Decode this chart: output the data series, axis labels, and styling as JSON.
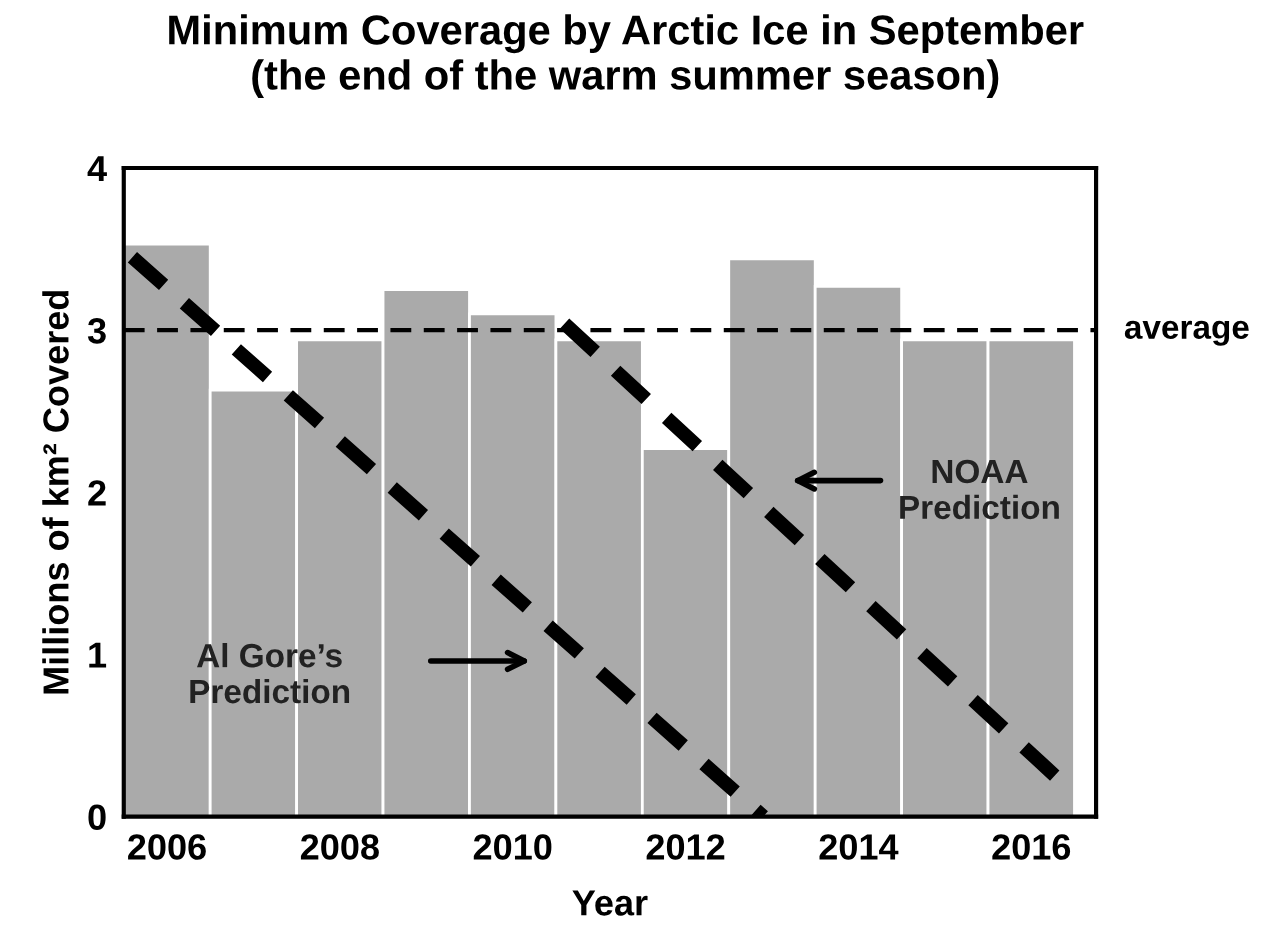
{
  "chart_data": {
    "type": "bar",
    "title": "Minimum Coverage by Arctic Ice in September\n(the end of the warm summer season)",
    "xlabel": "Year",
    "ylabel": "Millions of km² Covered",
    "x": [
      2006,
      2007,
      2008,
      2009,
      2010,
      2011,
      2012,
      2013,
      2014,
      2015,
      2016
    ],
    "series": [
      {
        "color": "#aaaaaa",
        "values": [
          3.53,
          2.63,
          2.94,
          3.25,
          3.1,
          2.94,
          2.27,
          3.44,
          3.27,
          2.94,
          2.94
        ]
      },
      {
        "type": "line",
        "color": "#000000",
        "line_style": "dashed",
        "x": [
          2005.6,
          2012.9
        ],
        "values": [
          3.45,
          0
        ]
      },
      {
        "type": "line",
        "color": "#000000",
        "line_style": "dashed",
        "x": [
          2010.6,
          2016.4
        ],
        "values": [
          3.04,
          0.19
        ]
      }
    ],
    "ref_lines": [
      {
        "axis": "y",
        "value": 3,
        "label": "average",
        "color": "#000000",
        "line_style": "dashed"
      }
    ],
    "annotations": [
      "Al Gore’s\nPrediction",
      "NOAA\nPrediction"
    ],
    "xlim": [
      2005.5,
      2016.75
    ],
    "xticks": [
      2006,
      2008,
      2010,
      2012,
      2014,
      2016
    ],
    "ylim": [
      0,
      4
    ],
    "yticks": [
      0,
      1,
      2,
      3,
      4
    ],
    "grid": false,
    "legend": false
  }
}
